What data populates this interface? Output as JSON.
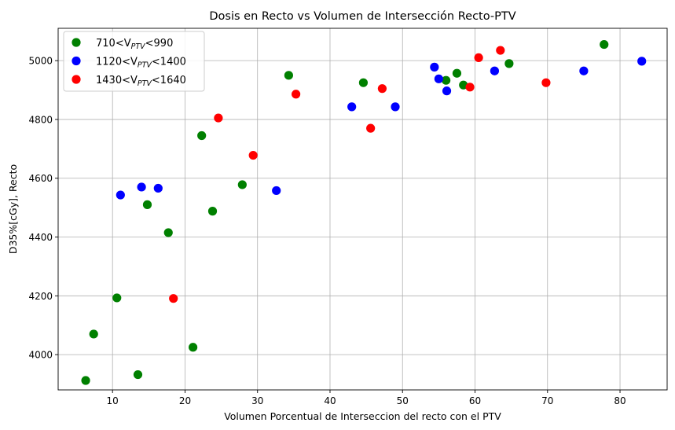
{
  "chart_data": {
    "type": "scatter",
    "title": "Dosis en Recto vs Volumen de Intersección Recto-PTV",
    "xlabel": "Volumen Porcentual de Interseccion del recto con el PTV",
    "ylabel": "D35%[cGy], Recto",
    "xlim": [
      2.5,
      86.5
    ],
    "ylim": [
      3880,
      5110
    ],
    "xticks": [
      10,
      20,
      30,
      40,
      50,
      60,
      70,
      80
    ],
    "yticks": [
      4000,
      4200,
      4400,
      4600,
      4800,
      5000
    ],
    "grid": true,
    "legend_position": "top-left",
    "series": [
      {
        "name_prefix": "710<V",
        "name_sub": "PTV",
        "name_suffix": "<990",
        "color": "#008000",
        "points": [
          [
            6.3,
            3912
          ],
          [
            7.4,
            4070
          ],
          [
            10.6,
            4193
          ],
          [
            13.5,
            3932
          ],
          [
            14.8,
            4510
          ],
          [
            17.7,
            4415
          ],
          [
            21.1,
            4025
          ],
          [
            22.3,
            4745
          ],
          [
            23.8,
            4488
          ],
          [
            27.9,
            4578
          ],
          [
            34.3,
            4950
          ],
          [
            44.6,
            4925
          ],
          [
            56.0,
            4933
          ],
          [
            57.5,
            4957
          ],
          [
            58.4,
            4917
          ],
          [
            64.7,
            4990
          ],
          [
            77.8,
            5055
          ]
        ]
      },
      {
        "name_prefix": "1120<V",
        "name_sub": "PTV",
        "name_suffix": "<1400",
        "color": "#0000ff",
        "points": [
          [
            11.1,
            4543
          ],
          [
            14.0,
            4570
          ],
          [
            16.3,
            4566
          ],
          [
            32.6,
            4558
          ],
          [
            43.0,
            4843
          ],
          [
            49.0,
            4843
          ],
          [
            54.4,
            4978
          ],
          [
            55.0,
            4938
          ],
          [
            56.1,
            4897
          ],
          [
            62.7,
            4965
          ],
          [
            75.0,
            4965
          ],
          [
            83.0,
            4998
          ]
        ]
      },
      {
        "name_prefix": "1430<V",
        "name_sub": "PTV",
        "name_suffix": "<1640",
        "color": "#ff0000",
        "points": [
          [
            18.4,
            4191
          ],
          [
            24.6,
            4805
          ],
          [
            29.4,
            4678
          ],
          [
            35.3,
            4886
          ],
          [
            45.6,
            4770
          ],
          [
            47.2,
            4905
          ],
          [
            59.3,
            4910
          ],
          [
            60.5,
            5010
          ],
          [
            63.5,
            5035
          ],
          [
            69.8,
            4925
          ]
        ]
      }
    ]
  }
}
